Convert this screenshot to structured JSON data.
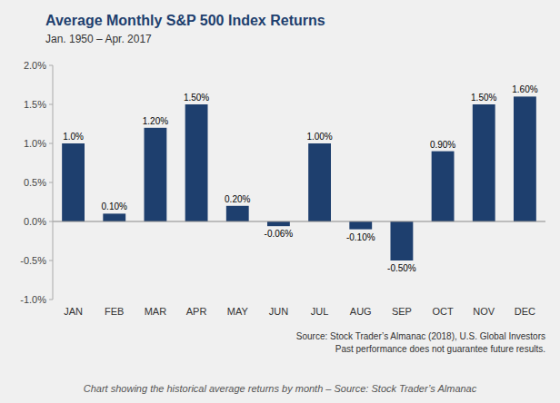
{
  "chart_data": {
    "type": "bar",
    "title": "Average Monthly S&P 500 Index Returns",
    "subtitle": "Jan. 1950 – Apr. 2017",
    "categories": [
      "JAN",
      "FEB",
      "MAR",
      "APR",
      "MAY",
      "JUN",
      "JUL",
      "AUG",
      "SEP",
      "OCT",
      "NOV",
      "DEC"
    ],
    "values": [
      1.0,
      0.1,
      1.2,
      1.5,
      0.2,
      -0.06,
      1.0,
      -0.1,
      -0.5,
      0.9,
      1.5,
      1.6
    ],
    "value_labels": [
      "1.0%",
      "0.10%",
      "1.20%",
      "1.50%",
      "0.20%",
      "-0.06%",
      "1.00%",
      "-0.10%",
      "-0.50%",
      "0.90%",
      "1.50%",
      "1.60%"
    ],
    "data_labels": true,
    "color": "#1e3f6e",
    "ylim": [
      -1.0,
      2.0
    ],
    "yticks": [
      {
        "value": -1.0,
        "label": "-1.0%"
      },
      {
        "value": -0.5,
        "label": "-0.5%"
      },
      {
        "value": 0.0,
        "label": "0.0%"
      },
      {
        "value": 0.5,
        "label": "0.5%"
      },
      {
        "value": 1.0,
        "label": "1.0%"
      },
      {
        "value": 1.5,
        "label": "1.5%"
      },
      {
        "value": 2.0,
        "label": "2.0%"
      }
    ],
    "grid": false,
    "annotations": [
      "Source: Stock Trader’s Almanac (2018), U.S. Global Investors",
      "Past performance does not guarantee future results.",
      "Chart showing the historical average returns by month – Source: Stock Trader’s Almanac"
    ]
  }
}
